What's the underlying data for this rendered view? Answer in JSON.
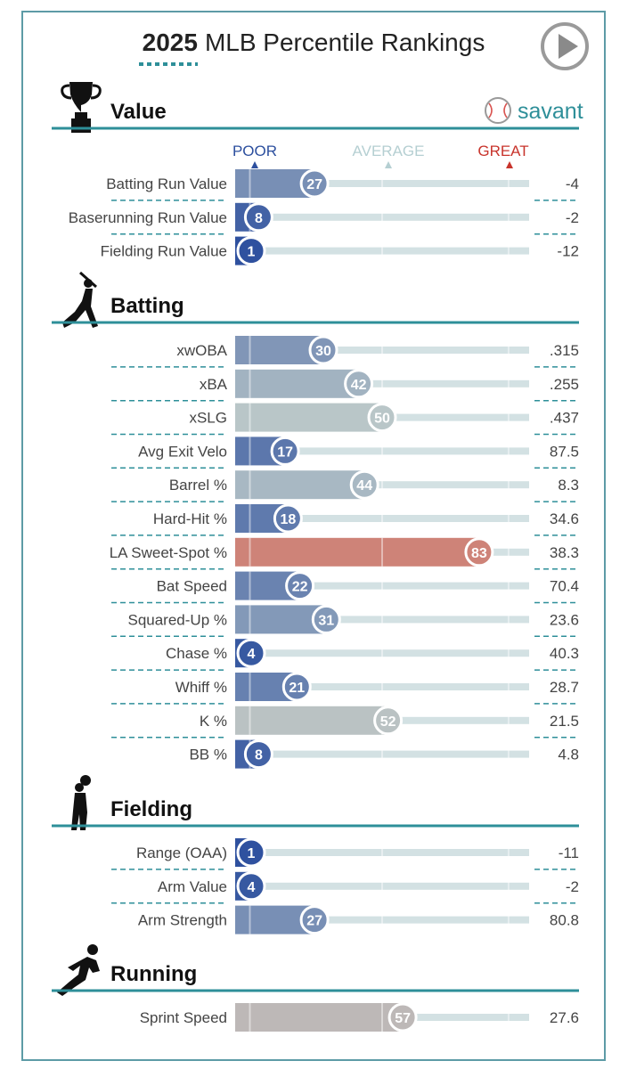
{
  "title": {
    "year": "2025",
    "rest": "MLB Percentile Rankings"
  },
  "brand": "savant",
  "scale": {
    "poor": "POOR",
    "average": "AVERAGE",
    "great": "GREAT"
  },
  "colors": {
    "accent": "#2e8f99",
    "poor": "#2c4f9e",
    "average": "#a8a8a8",
    "great": "#c8342c",
    "track": "#d3e1e3"
  },
  "chart_data": {
    "type": "bar",
    "title": "2025 MLB Percentile Rankings",
    "xlim": [
      0,
      100
    ],
    "sections": [
      {
        "name": "Value",
        "icon": "trophy-icon",
        "rows": [
          {
            "label": "Batting Run Value",
            "percentile": 27,
            "value": "-4"
          },
          {
            "label": "Baserunning Run Value",
            "percentile": 8,
            "value": "-2"
          },
          {
            "label": "Fielding Run Value",
            "percentile": 1,
            "value": "-12"
          }
        ]
      },
      {
        "name": "Batting",
        "icon": "batter-icon",
        "rows": [
          {
            "label": "xwOBA",
            "percentile": 30,
            "value": ".315"
          },
          {
            "label": "xBA",
            "percentile": 42,
            "value": ".255"
          },
          {
            "label": "xSLG",
            "percentile": 50,
            "value": ".437"
          },
          {
            "label": "Avg Exit Velo",
            "percentile": 17,
            "value": "87.5"
          },
          {
            "label": "Barrel %",
            "percentile": 44,
            "value": "8.3"
          },
          {
            "label": "Hard-Hit %",
            "percentile": 18,
            "value": "34.6"
          },
          {
            "label": "LA Sweet-Spot %",
            "percentile": 83,
            "value": "38.3"
          },
          {
            "label": "Bat Speed",
            "percentile": 22,
            "value": "70.4"
          },
          {
            "label": "Squared-Up %",
            "percentile": 31,
            "value": "23.6"
          },
          {
            "label": "Chase %",
            "percentile": 4,
            "value": "40.3"
          },
          {
            "label": "Whiff %",
            "percentile": 21,
            "value": "28.7"
          },
          {
            "label": "K %",
            "percentile": 52,
            "value": "21.5"
          },
          {
            "label": "BB %",
            "percentile": 8,
            "value": "4.8"
          }
        ]
      },
      {
        "name": "Fielding",
        "icon": "fielder-icon",
        "rows": [
          {
            "label": "Range (OAA)",
            "percentile": 1,
            "value": "-11"
          },
          {
            "label": "Arm Value",
            "percentile": 4,
            "value": "-2"
          },
          {
            "label": "Arm Strength",
            "percentile": 27,
            "value": "80.8"
          }
        ]
      },
      {
        "name": "Running",
        "icon": "runner-icon",
        "rows": [
          {
            "label": "Sprint Speed",
            "percentile": 57,
            "value": "27.6"
          }
        ]
      }
    ]
  }
}
